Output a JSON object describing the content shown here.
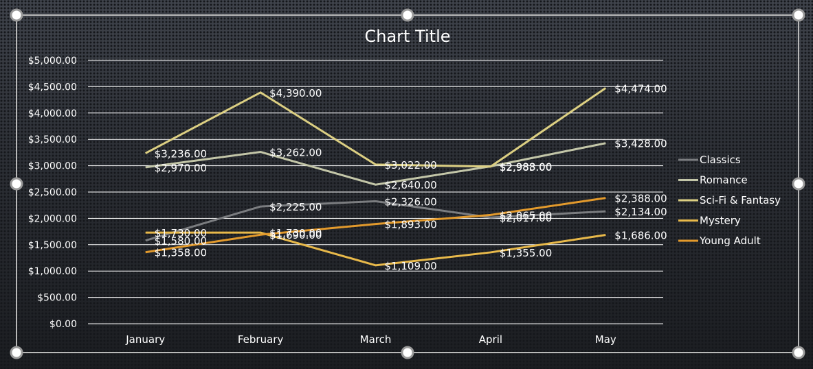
{
  "chart_data": {
    "type": "line",
    "title": "Chart Title",
    "xlabel": "",
    "ylabel": "",
    "categories": [
      "January",
      "February",
      "March",
      "April",
      "May"
    ],
    "ylim": [
      0,
      5000
    ],
    "yticks": [
      "$0.00",
      "$500.00",
      "$1,000.00",
      "$1,500.00",
      "$2,000.00",
      "$2,500.00",
      "$3,000.00",
      "$3,500.00",
      "$4,000.00",
      "$4,500.00",
      "$5,000.00"
    ],
    "grid": true,
    "legend_position": "right",
    "series": [
      {
        "name": "Classics",
        "color": "#7b7d80",
        "values": [
          1580,
          2225,
          2326,
          2017,
          2134
        ],
        "labels": [
          "$1,580.00",
          "$2,225.00",
          "$2,326.00",
          "$2,017.00",
          "$2,134.00"
        ]
      },
      {
        "name": "Romance",
        "color": "#c3c6a8",
        "values": [
          2970,
          3262,
          2640,
          2988,
          3428
        ],
        "labels": [
          "$2,970.00",
          "$3,262.00",
          "$2,640.00",
          "$2,988.00",
          "$3,428.00"
        ]
      },
      {
        "name": "Sci-Fi & Fantasy",
        "color": "#dccf82",
        "values": [
          3236,
          4390,
          3022,
          2983,
          4474
        ],
        "labels": [
          "$3,236.00",
          "$4,390.00",
          "$3,022.00",
          "$2,983.00",
          "$4,474.00"
        ]
      },
      {
        "name": "Mystery",
        "color": "#e8b94a",
        "values": [
          1730,
          1730,
          1109,
          1355,
          1686
        ],
        "labels": [
          "$1,730.00",
          "$1,730.00",
          "$1,109.00",
          "$1,355.00",
          "$1,686.00"
        ]
      },
      {
        "name": "Young Adult",
        "color": "#e39a2c",
        "values": [
          1358,
          1690,
          1893,
          2065,
          2388
        ],
        "labels": [
          "$1,358.00",
          "$1,690.00",
          "$1,893.00",
          "$2,065.00",
          "$2,388.00"
        ]
      }
    ]
  }
}
